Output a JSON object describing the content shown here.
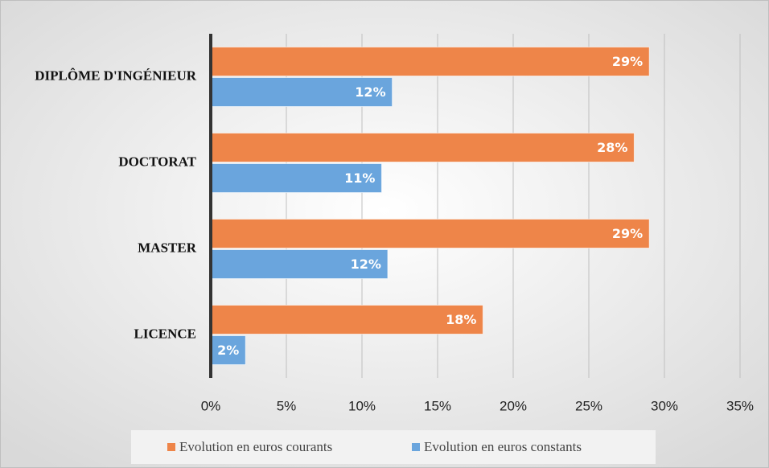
{
  "chart_data": {
    "type": "hbar",
    "categories": [
      "DIPLÔME D'INGÉNIEUR",
      "DOCTORAT",
      "MASTER",
      "LICENCE"
    ],
    "series": [
      {
        "name": "Evolution en euros courants",
        "color": "#EE8549",
        "values": [
          29,
          28,
          29,
          18
        ],
        "value_labels": [
          "29%",
          "28%",
          "29%",
          "18%"
        ]
      },
      {
        "name": "Evolution en euros constants",
        "color": "#6AA5DD",
        "values": [
          12,
          11.3,
          11.7,
          2.3
        ],
        "value_labels": [
          "12%",
          "11%",
          "12%",
          "2%"
        ]
      }
    ],
    "xlim": [
      0,
      35
    ],
    "xticks": [
      {
        "value": 0,
        "label": "0%"
      },
      {
        "value": 5,
        "label": "5%"
      },
      {
        "value": 10,
        "label": "10%"
      },
      {
        "value": 15,
        "label": "15%"
      },
      {
        "value": 20,
        "label": "20%"
      },
      {
        "value": 25,
        "label": "25%"
      },
      {
        "value": 30,
        "label": "30%"
      },
      {
        "value": 35,
        "label": "35%"
      }
    ],
    "grid": true,
    "legend": "bottom"
  }
}
